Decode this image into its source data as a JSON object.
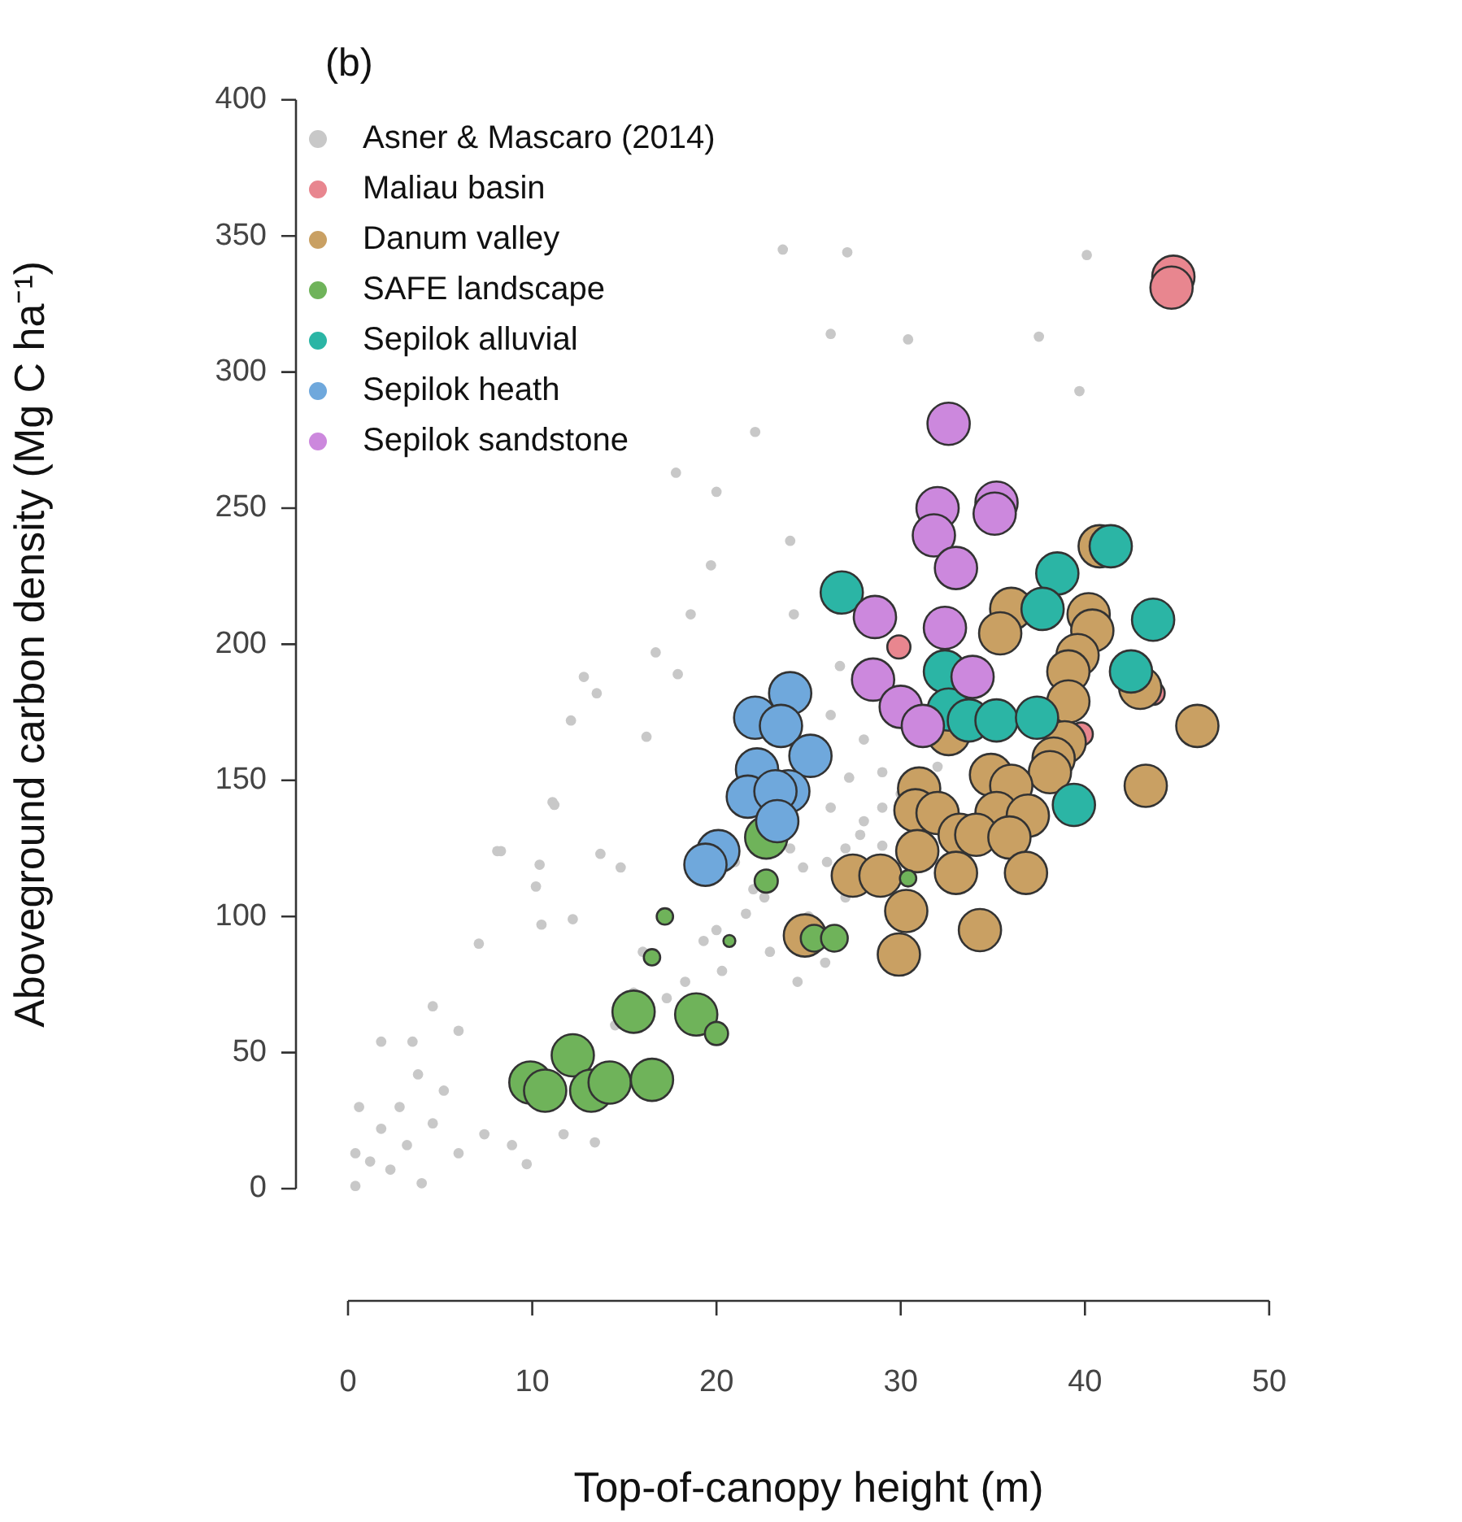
{
  "chart_data": {
    "type": "bubble",
    "title": "(b)",
    "xlabel": "Top-of-canopy height (m)",
    "ylabel": "Aboveground carbon density (Mg C ha⁻¹)",
    "xlim": [
      0,
      50
    ],
    "xticks": [
      0,
      10,
      20,
      30,
      40,
      50
    ],
    "ylim": [
      0,
      400
    ],
    "yticks": [
      0,
      50,
      100,
      150,
      200,
      250,
      300,
      350,
      400
    ],
    "grid": false,
    "legend": "top left",
    "marker": "circle",
    "series": [
      {
        "name": "Asner & Mascaro (2014)",
        "color": "#c8c8c8",
        "x": [
          23.6,
          27.1,
          26.2,
          30.4,
          22.1,
          17.8,
          20.0,
          24.0,
          19.7,
          24.2,
          18.6,
          40.1,
          37.5,
          39.7,
          16.7,
          17.9,
          12.8,
          13.5,
          12.1,
          16.2,
          11.1,
          8.3,
          10.4,
          13.7,
          7.1,
          10.5,
          4.6,
          1.8,
          3.5,
          6.0,
          0.6,
          1.8,
          3.2,
          4.6,
          0.4,
          2.3,
          6.0,
          7.4,
          8.9,
          0.4,
          4.0,
          9.7,
          11.7,
          13.4,
          24.7,
          27.0,
          21.6,
          22.9,
          20.3,
          26.2,
          27.2,
          28.0,
          26.2,
          26.7,
          29.0,
          18.3,
          17.3,
          24.4,
          25.9,
          22.6,
          19.3,
          29.0,
          16.0,
          11.2,
          8.1,
          10.2,
          14.8,
          12.2,
          22,
          24,
          26,
          28,
          30,
          32,
          20,
          25,
          27,
          29,
          21,
          27.8,
          1.2,
          2.8,
          5.2,
          3.8,
          14.5,
          15.5
        ],
        "values": [
          345,
          344,
          314,
          312,
          278,
          263,
          256,
          238,
          229,
          211,
          211,
          343,
          313,
          293,
          197,
          189,
          188,
          182,
          172,
          166,
          142,
          124,
          119,
          123,
          90,
          97,
          67,
          54,
          54,
          58,
          30,
          22,
          16,
          24,
          1,
          7,
          13,
          20,
          16,
          13,
          2,
          9,
          20,
          17,
          118,
          107,
          101,
          87,
          80,
          140,
          151,
          165,
          174,
          192,
          153,
          76,
          70,
          76,
          83,
          107,
          91,
          126,
          87,
          141,
          124,
          111,
          118,
          99,
          110,
          125,
          120,
          135,
          145,
          155,
          95,
          100,
          125,
          140,
          120,
          130,
          10,
          30,
          36,
          42,
          60,
          72
        ],
        "sizes": [
          0.06,
          0.06,
          0.06,
          0.06,
          0.06,
          0.06,
          0.06,
          0.06,
          0.06,
          0.06,
          0.06,
          0.06,
          0.06,
          0.06,
          0.06,
          0.06,
          0.06,
          0.06,
          0.06,
          0.06,
          0.06,
          0.06,
          0.06,
          0.06,
          0.06,
          0.06,
          0.06,
          0.06,
          0.06,
          0.06,
          0.06,
          0.06,
          0.06,
          0.06,
          0.06,
          0.06,
          0.06,
          0.06,
          0.06,
          0.06,
          0.06,
          0.06,
          0.06,
          0.06,
          0.06,
          0.06,
          0.06,
          0.06,
          0.06,
          0.06,
          0.06,
          0.06,
          0.06,
          0.06,
          0.06,
          0.06,
          0.06,
          0.06,
          0.06,
          0.06,
          0.06,
          0.06,
          0.06,
          0.06,
          0.06,
          0.06,
          0.06,
          0.06,
          0.06,
          0.06,
          0.06,
          0.06,
          0.06,
          0.06,
          0.06,
          0.06,
          0.06,
          0.06,
          0.06,
          0.06,
          0.06,
          0.06,
          0.06,
          0.06,
          0.06,
          0.06
        ]
      },
      {
        "name": "Maliau basin",
        "color": "#e8868f",
        "x": [
          44.8,
          44.7,
          29.9,
          43.7,
          39.8
        ],
        "values": [
          335,
          331,
          199,
          182,
          167
        ],
        "sizes": [
          1,
          1,
          0.3,
          0.3,
          0.3
        ]
      },
      {
        "name": "Danum valley",
        "color": "#c9a063",
        "x": [
          36.0,
          35.4,
          40.2,
          40.4,
          39.6,
          39.1,
          39.1,
          38.9,
          38.3,
          38.1,
          46.1,
          43.3,
          40.8,
          43.0,
          34.9,
          36.0,
          31.0,
          30.8,
          32.0,
          35.2,
          36.9,
          33.2,
          34.1,
          35.9,
          30.9,
          27.4,
          28.9,
          33.0,
          36.8,
          30.3,
          34.3,
          29.9,
          32.6,
          24.8
        ],
        "values": [
          213,
          204,
          211,
          205,
          196,
          190,
          179,
          164,
          158,
          153,
          170,
          148,
          236,
          184,
          152,
          148,
          147,
          139,
          138,
          138,
          137,
          130,
          130,
          129,
          124,
          115,
          115,
          116,
          116,
          102,
          95,
          86,
          167,
          93
        ],
        "sizes": [
          1,
          1,
          1,
          1,
          1,
          1,
          1,
          1,
          1,
          1,
          1,
          1,
          1,
          1,
          1,
          1,
          1,
          1,
          1,
          1,
          1,
          1,
          1,
          1,
          1,
          1,
          1,
          1,
          1,
          1,
          1,
          1,
          1,
          1
        ]
      },
      {
        "name": "SAFE landscape",
        "color": "#6fb35a",
        "x": [
          9.9,
          10.7,
          12.2,
          13.2,
          14.2,
          16.5,
          15.5,
          18.9,
          20.0,
          16.5,
          17.2,
          20.7,
          22.7,
          22.7,
          25.3,
          26.4,
          30.4
        ],
        "values": [
          39,
          36,
          49,
          36,
          39,
          40,
          65,
          64,
          57,
          85,
          100,
          91,
          113,
          129,
          92,
          92,
          114
        ],
        "sizes": [
          1,
          1,
          1,
          1,
          1,
          1,
          1,
          1,
          0.3,
          0.15,
          0.15,
          0.08,
          0.3,
          1,
          0.4,
          0.4,
          0.15
        ]
      },
      {
        "name": "Sepilok alluvial",
        "color": "#2bb5a5",
        "x": [
          26.8,
          41.4,
          38.5,
          37.7,
          43.7,
          42.5,
          32.4,
          32.6,
          33.7,
          35.2,
          37.4,
          39.4
        ],
        "values": [
          219,
          236,
          226,
          213,
          209,
          190,
          190,
          176,
          172,
          172,
          173,
          141
        ],
        "sizes": [
          1,
          1,
          1,
          1,
          1,
          1,
          1,
          1,
          1,
          1,
          1,
          1
        ]
      },
      {
        "name": "Sepilok heath",
        "color": "#6fa8dc",
        "x": [
          24.0,
          22.1,
          23.5,
          25.1,
          22.2,
          23.9,
          21.7,
          23.2,
          23.3,
          20.1,
          19.4
        ],
        "values": [
          182,
          173,
          170,
          159,
          154,
          146,
          144,
          146,
          135,
          124,
          119
        ],
        "sizes": [
          1,
          1,
          1,
          1,
          1,
          1,
          1,
          1,
          1,
          1,
          1
        ]
      },
      {
        "name": "Sepilok sandstone",
        "color": "#cc88dd",
        "x": [
          32.6,
          32.0,
          31.8,
          35.2,
          35.1,
          33.0,
          28.6,
          32.4,
          28.5,
          33.9,
          30.0,
          31.2
        ],
        "values": [
          281,
          250,
          240,
          252,
          248,
          228,
          210,
          206,
          187,
          188,
          177,
          170
        ],
        "sizes": [
          1,
          1,
          1,
          1,
          1,
          1,
          1,
          1,
          1,
          1,
          1,
          1
        ]
      }
    ]
  }
}
